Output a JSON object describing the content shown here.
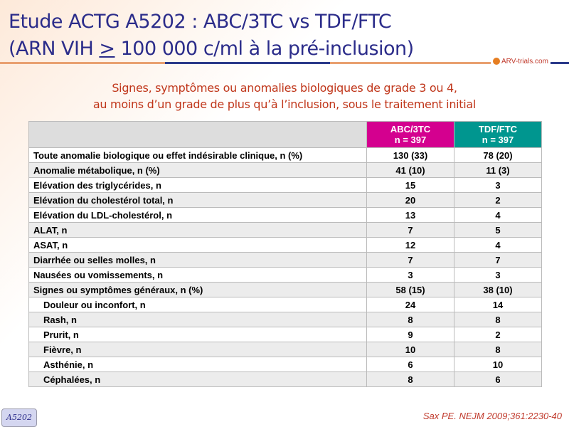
{
  "title": {
    "line1": "Etude ACTG A5202 : ABC/3TC vs TDF/FTC",
    "line2_pre": "(ARN VIH ",
    "line2_ge": ">",
    "line2_post": " 100 000 c/ml à la pré-inclusion)"
  },
  "logo": "ARV-trials.com",
  "subtitle": {
    "line1": "Signes, symptômes ou anomalies biologiques de grade 3 ou 4,",
    "line2": "au moins d’un grade de plus qu’à l’inclusion, sous le traitement initial"
  },
  "colors": {
    "abc": "#d4008f",
    "tdf": "#00968f",
    "title": "#2b2c8a",
    "subtitle": "#c0361a"
  },
  "table": {
    "headers": [
      {
        "name": "ABC/3TC",
        "n": "n = 397"
      },
      {
        "name": "TDF/FTC",
        "n": "n = 397"
      }
    ],
    "rows": [
      {
        "label": "Toute anomalie biologique ou effet indésirable clinique, n (%)",
        "a": "130 (33)",
        "b": "78 (20)"
      },
      {
        "label": "Anomalie métabolique, n (%)",
        "a": "41 (10)",
        "b": "11 (3)"
      },
      {
        "label": "Elévation des triglycérides, n",
        "a": "15",
        "b": "3"
      },
      {
        "label": "Elévation du cholestérol total, n",
        "a": "20",
        "b": "2"
      },
      {
        "label": "Elévation du LDL-cholestérol, n",
        "a": "13",
        "b": "4"
      },
      {
        "label": "ALAT, n",
        "a": "7",
        "b": "5"
      },
      {
        "label": "ASAT, n",
        "a": "12",
        "b": "4"
      },
      {
        "label": "Diarrhée ou selles molles, n",
        "a": "7",
        "b": "7"
      },
      {
        "label": "Nausées ou vomissements, n",
        "a": "3",
        "b": "3"
      },
      {
        "label": "Signes ou symptômes généraux, n (%)",
        "a": "58 (15)",
        "b": "38 (10)"
      },
      {
        "label": "Douleur ou inconfort, n",
        "a": "24",
        "b": "14",
        "indent": true
      },
      {
        "label": "Rash, n",
        "a": "8",
        "b": "8",
        "indent": true
      },
      {
        "label": "Prurit, n",
        "a": "9",
        "b": "2",
        "indent": true
      },
      {
        "label": "Fièvre, n",
        "a": "10",
        "b": "8",
        "indent": true
      },
      {
        "label": "Asthénie, n",
        "a": "6",
        "b": "10",
        "indent": true
      },
      {
        "label": "Céphalées, n",
        "a": "8",
        "b": "6",
        "indent": true
      }
    ]
  },
  "badge": "A5202",
  "reference": "Sax PE. NEJM 2009;361:2230-40"
}
